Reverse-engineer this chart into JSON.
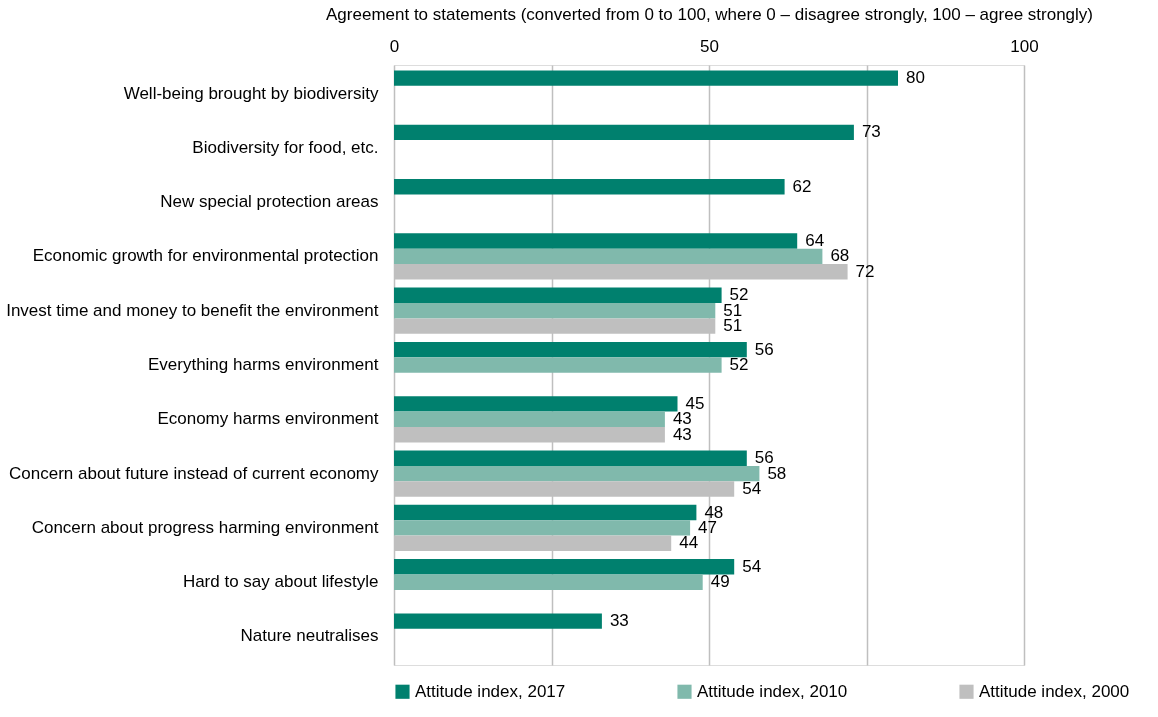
{
  "chart_data": {
    "type": "bar",
    "orientation": "horizontal",
    "xlabel": "Agreement to statements (converted from 0 to 100, where 0 – disagree strongly, 100 – agree strongly)",
    "categories": [
      "Well-being brought by biodiversity",
      "Biodiversity for food, etc.",
      "New special protection areas",
      "Economic growth for environmental protection",
      "Invest time and money to benefit the environment",
      "Everything harms environment",
      "Economy harms environment",
      "Concern about future instead of current economy",
      "Concern about progress harming environment",
      "Hard to say about lifestyle",
      "Nature neutralises"
    ],
    "series": [
      {
        "name": "Attitude index, 2017",
        "color": "#00806e",
        "values": [
          80,
          73,
          62,
          64,
          52,
          56,
          45,
          56,
          48,
          54,
          33
        ]
      },
      {
        "name": "Attitude index, 2010",
        "color": "#80b9ac",
        "values": [
          null,
          null,
          null,
          68,
          51,
          52,
          43,
          58,
          47,
          49,
          null
        ]
      },
      {
        "name": "Attitude index, 2000",
        "color": "#bfbfbf",
        "values": [
          null,
          null,
          null,
          72,
          51,
          null,
          43,
          54,
          44,
          null,
          null
        ]
      }
    ],
    "xlim": [
      0,
      100
    ],
    "xticks": [
      0,
      {
        "value": 25,
        "label": null
      },
      50,
      {
        "value": 75,
        "label": null
      },
      100
    ],
    "grid": "x",
    "legend": "bottom",
    "data_labels": true
  }
}
